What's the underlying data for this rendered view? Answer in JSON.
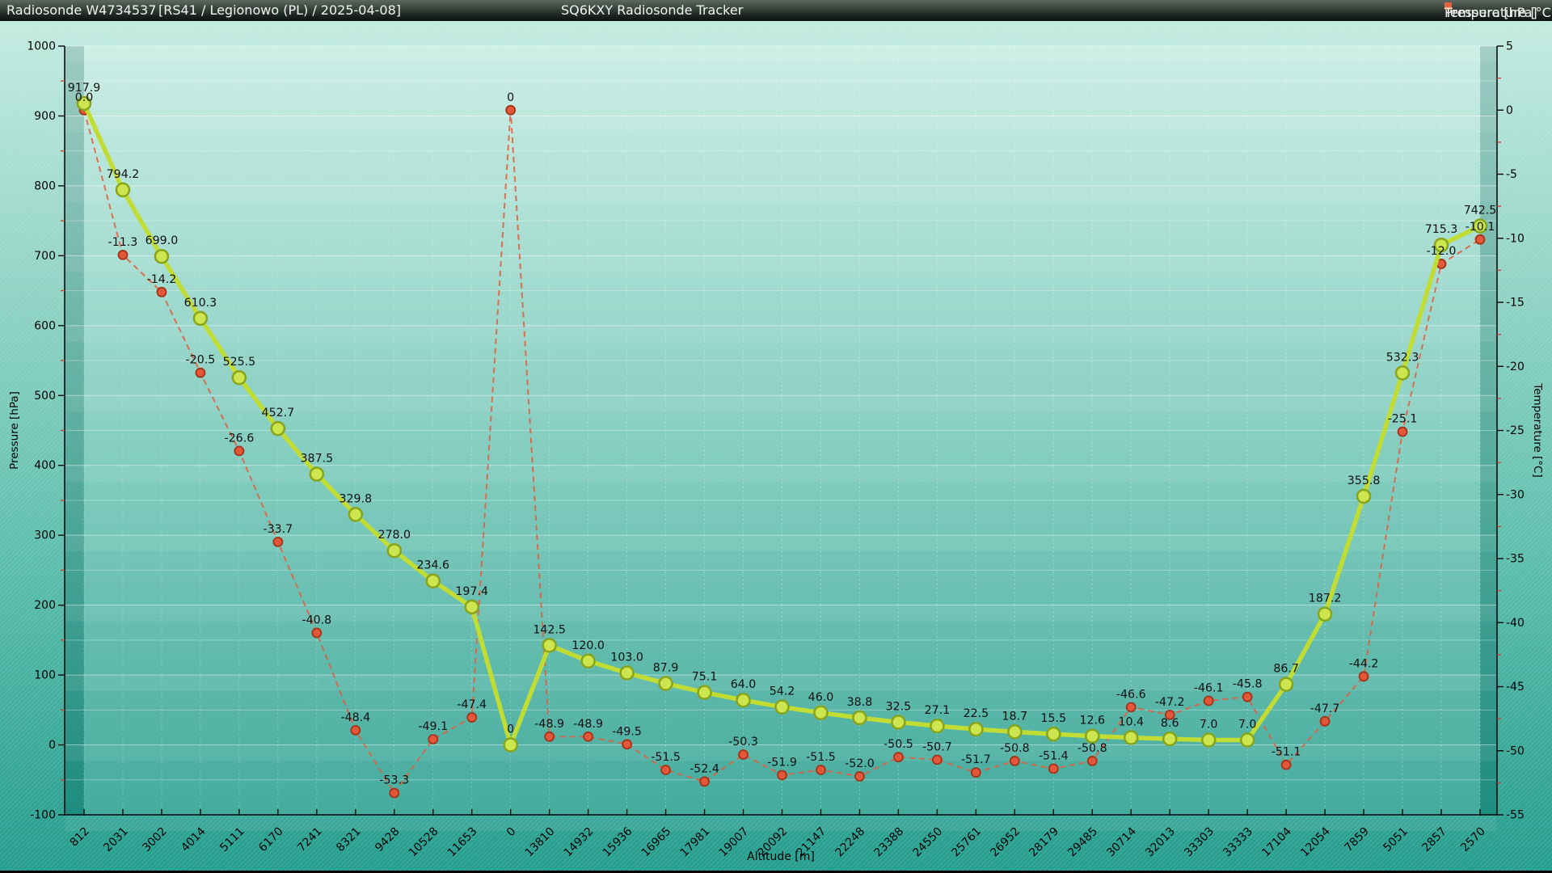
{
  "header": {
    "station": "Radiosonde W4734537",
    "flight_info": "[RS41 / Legionowo (PL) / 2025-04-08]",
    "app_title": "SQ6KXY Radiosonde Tracker",
    "legend": [
      {
        "label": "Pressure [hPa]",
        "color": "#c1dd33"
      },
      {
        "label": "Temperature [°C]",
        "color": "#e2653f"
      }
    ]
  },
  "colors": {
    "pressure_line": "#c1dd33",
    "pressure_marker_fill": "#cde54e",
    "pressure_marker_stroke": "#87a41c",
    "temperature_line": "#df6040",
    "temperature_marker_fill": "#e25639",
    "temperature_marker_stroke": "#a33419",
    "minor_tick": "#d43a2a",
    "axis": "#0a0a0a",
    "label_text": "#101010",
    "bg_top": "#c3ebe0",
    "bg_bottom": "#259d8d"
  },
  "chart_data": {
    "type": "line",
    "title": "SQ6KXY Radiosonde Tracker",
    "xlabel": "Altitude [m]",
    "grid": true,
    "legend_position": "top-right",
    "categories": [
      "812",
      "2031",
      "3002",
      "4014",
      "5111",
      "6170",
      "7241",
      "8321",
      "9428",
      "10528",
      "11653",
      "0",
      "13810",
      "14932",
      "15936",
      "16965",
      "17981",
      "19007",
      "20092",
      "21147",
      "22248",
      "23388",
      "24550",
      "25761",
      "26952",
      "28179",
      "29485",
      "30714",
      "32013",
      "33303",
      "33333",
      "17104",
      "12054",
      "7859",
      "5051",
      "2857",
      "2570"
    ],
    "y_left": {
      "label": "Pressure [hPa]",
      "min": -100,
      "max": 1000,
      "tick_step": 100,
      "minor_step": 50
    },
    "y_right": {
      "label": "Temperature [°C]",
      "min": -55,
      "max": 5,
      "tick_step": 5,
      "minor_step": 2.5
    },
    "series": [
      {
        "name": "Pressure [hPa]",
        "axis": "left",
        "color": "#c1dd33",
        "marker_fill": "#cde54e",
        "marker_stroke": "#87a41c",
        "dashed": false,
        "values": [
          917.9,
          794.2,
          699.0,
          610.3,
          525.5,
          452.7,
          387.5,
          329.8,
          278.0,
          234.6,
          197.4,
          0,
          142.5,
          120.0,
          103.0,
          87.9,
          75.1,
          64.0,
          54.2,
          46.0,
          38.8,
          32.5,
          27.1,
          22.5,
          18.7,
          15.5,
          12.6,
          10.4,
          8.6,
          7.0,
          7.0,
          86.7,
          187.2,
          355.8,
          532.3,
          715.3,
          742.5
        ],
        "labels": [
          "917.9",
          "794.2",
          "699.0",
          "610.3",
          "525.5",
          "452.7",
          "387.5",
          "329.8",
          "278.0",
          "234.6",
          "197.4",
          "0",
          "142.5",
          "120.0",
          "103.0",
          "87.9",
          "75.1",
          "64.0",
          "54.2",
          "46.0",
          "38.8",
          "32.5",
          "27.1",
          "22.5",
          "18.7",
          "15.5",
          "12.6",
          "10.4",
          "8.6",
          "7.0",
          "7.0",
          "86.7",
          "187.2",
          "355.8",
          "532.3",
          "715.3",
          "742.5"
        ]
      },
      {
        "name": "Temperature [°C]",
        "axis": "right",
        "color": "#df6040",
        "marker_fill": "#e25639",
        "marker_stroke": "#a33419",
        "dashed": true,
        "values": [
          0.0,
          -11.3,
          -14.2,
          -20.5,
          -26.6,
          -33.7,
          -40.8,
          -48.4,
          -53.3,
          -49.1,
          -47.4,
          0,
          -48.9,
          -48.9,
          -49.5,
          -51.5,
          -52.4,
          -50.3,
          -51.9,
          -51.5,
          -52.0,
          -50.5,
          -50.7,
          -51.7,
          -50.8,
          -51.4,
          -50.8,
          -46.6,
          -47.2,
          -46.1,
          -45.8,
          -51.1,
          -47.7,
          -44.2,
          -25.1,
          -12.0,
          -10.1
        ],
        "labels": [
          "0.0",
          "-11.3",
          "-14.2",
          "-20.5",
          "-26.6",
          "-33.7",
          "-40.8",
          "-48.4",
          "-53.3",
          "-49.1",
          "-47.4",
          "0",
          "-48.9",
          "-48.9",
          "-49.5",
          "-51.5",
          "-52.4",
          "-50.3",
          "-51.9",
          "-51.5",
          "-52.0",
          "-50.5",
          "-50.7",
          "-51.7",
          "-50.8",
          "-51.4",
          "-50.8",
          "-46.6",
          "-47.2",
          "-46.1",
          "-45.8",
          "-51.1",
          "-47.7",
          "-44.2",
          "-25.1",
          "-12.0",
          "-10.1"
        ]
      }
    ]
  }
}
